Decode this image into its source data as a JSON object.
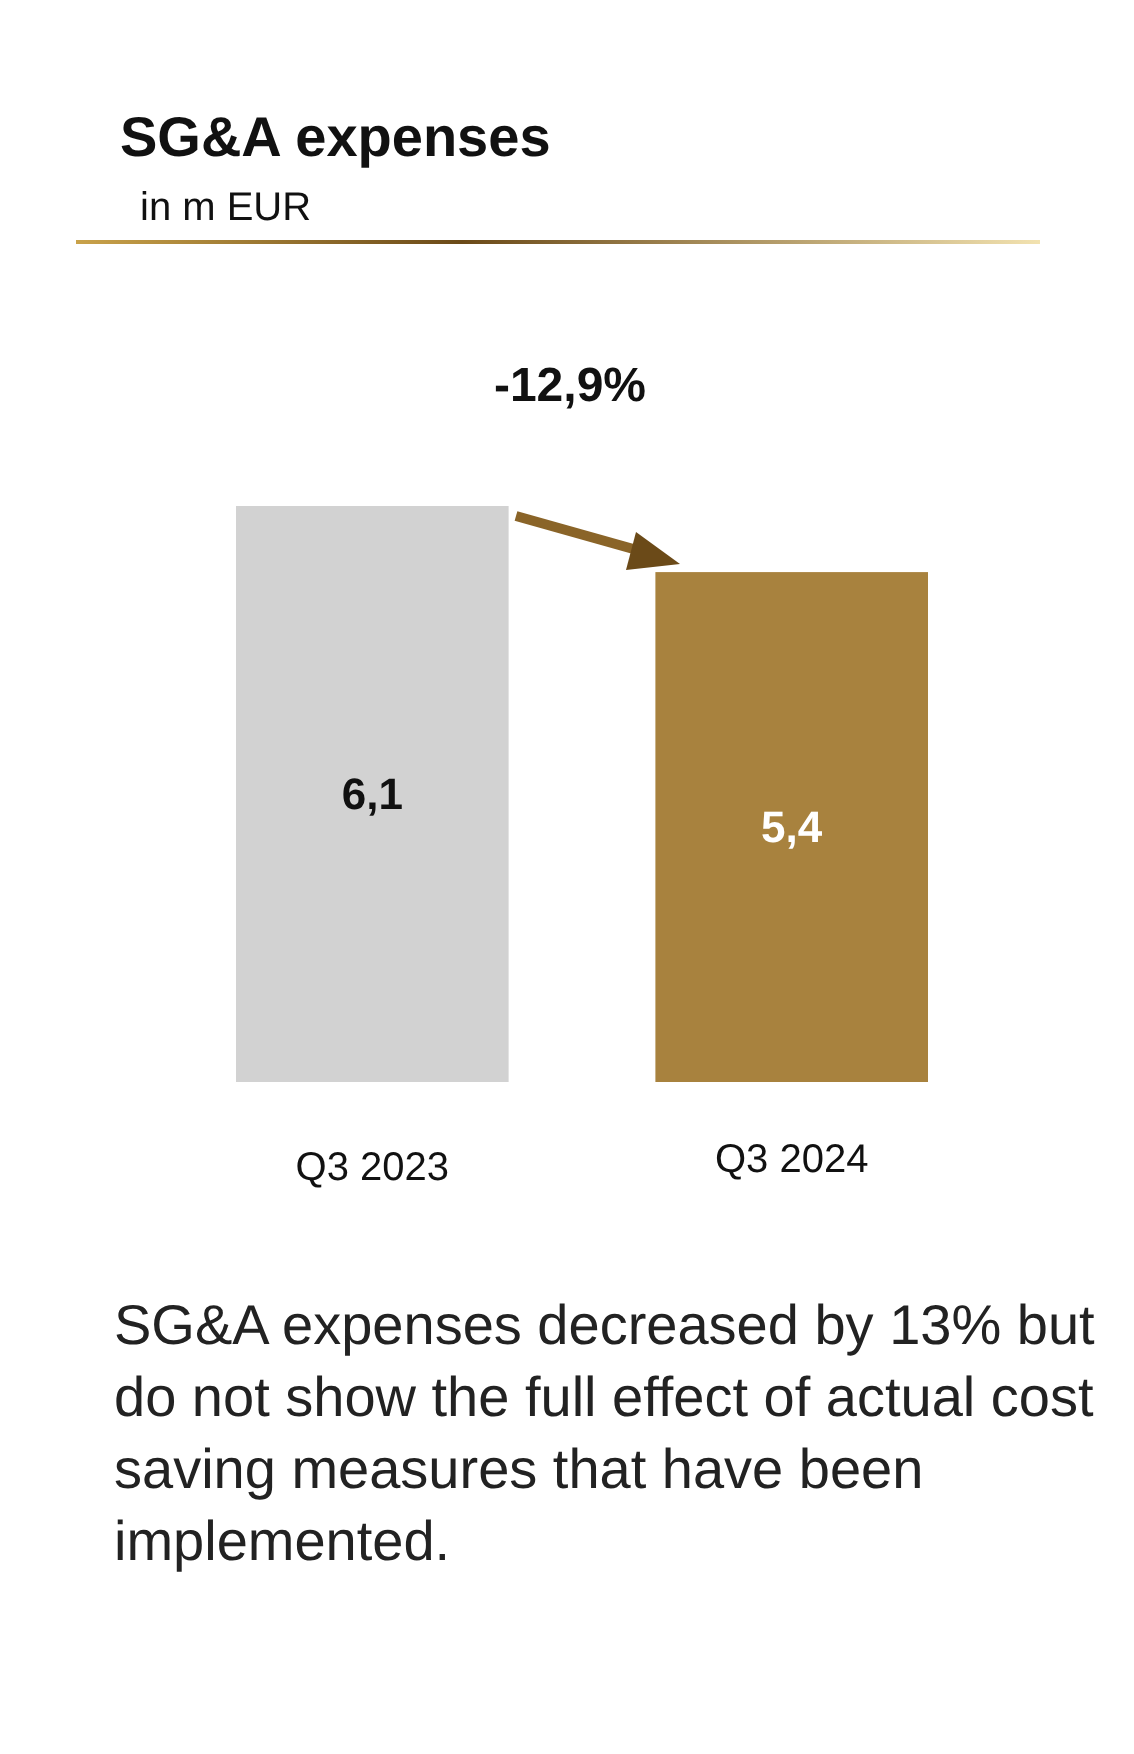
{
  "chart_data": {
    "type": "bar",
    "title": "SG&A expenses",
    "subtitle": "in m EUR",
    "categories": [
      "Q3 2023",
      "Q3 2024"
    ],
    "values": [
      6.1,
      5.4
    ],
    "colors": [
      "#d2d2d2",
      "#a8823e"
    ],
    "value_labels": [
      "6,1",
      "5,4"
    ],
    "annotations": [
      "-12,9%",
      "SG&A expenses decreased by 13% but do not show the full effect of actual cost saving measures that have been implemented."
    ]
  }
}
